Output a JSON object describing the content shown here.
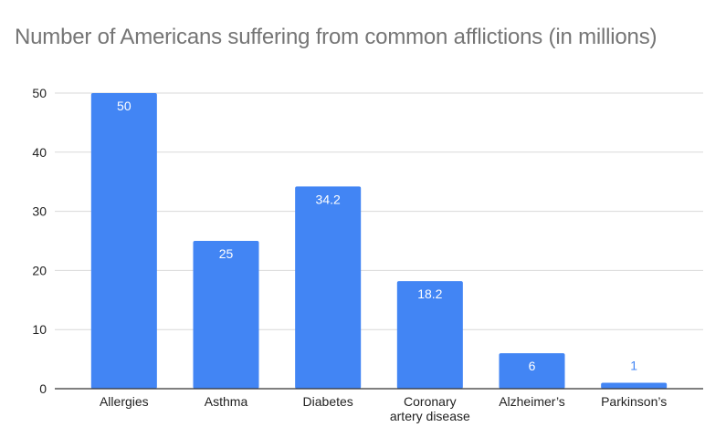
{
  "chart_data": {
    "type": "bar",
    "title": "Number of Americans suffering from common afflictions (in millions)",
    "xlabel": "",
    "ylabel": "",
    "categories": [
      "Allergies",
      "Asthma",
      "Diabetes",
      "Coronary artery disease",
      "Alzheimer’s",
      "Parkinson’s"
    ],
    "category_lines": [
      [
        "Allergies"
      ],
      [
        "Asthma"
      ],
      [
        "Diabetes"
      ],
      [
        "Coronary",
        "artery disease"
      ],
      [
        "Alzheimer’s"
      ],
      [
        "Parkinson’s"
      ]
    ],
    "values": [
      50,
      25,
      34.2,
      18.2,
      6,
      1
    ],
    "data_labels": [
      "50",
      "25",
      "34.2",
      "18.2",
      "6",
      "1"
    ],
    "ylim": [
      0,
      50
    ],
    "yticks": [
      0,
      10,
      20,
      30,
      40,
      50
    ],
    "grid": true,
    "legend": "none",
    "colors": {
      "bar": "#4285f4",
      "label_inside": "#ffffff",
      "label_outside": "#4285f4",
      "grid": "#d9d9d9",
      "axis": "#333333",
      "title": "#757575"
    }
  }
}
